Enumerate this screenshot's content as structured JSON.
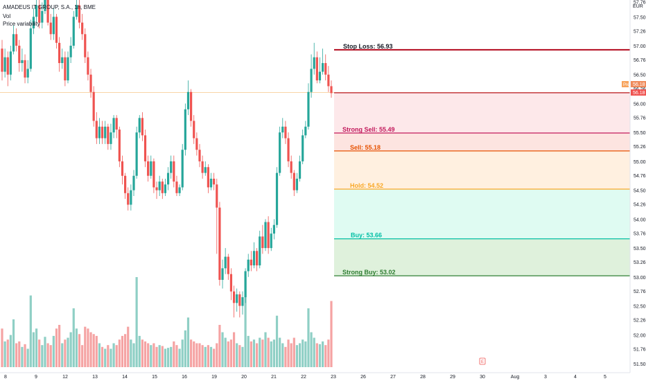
{
  "legend": {
    "symbol": "AMADEUS IT GROUP, S.A., 1h, BME",
    "vol": "Vol",
    "indicator": "Price variability"
  },
  "currency": "EUR",
  "current_price_label": "56.18",
  "prev_label": "Pre",
  "badge_icon": "E",
  "colors": {
    "bull": "#26a69a",
    "bear": "#ef5350",
    "vol_bull": "#8fcfc5",
    "vol_bear": "#f5a3a3",
    "stop_loss": "#b2081c",
    "strong_sell": "#c2185b",
    "sell": "#e65100",
    "hold": "#f9a825",
    "buy": "#00bfa5",
    "strong_buy": "#2e7d32"
  },
  "chart_data": {
    "type": "candlestick",
    "ylim": [
      51.5,
      57.9
    ],
    "y_ticks": [
      "57.76",
      "57.50",
      "57.26",
      "57.00",
      "56.76",
      "56.50",
      "56.26",
      "56.00",
      "55.76",
      "55.50",
      "55.26",
      "55.00",
      "54.76",
      "54.50",
      "54.26",
      "54.00",
      "53.76",
      "53.50",
      "53.26",
      "53.00",
      "52.76",
      "52.50",
      "52.26",
      "52.00",
      "51.76",
      "51.50"
    ],
    "x_ticks": [
      "8",
      "9",
      "12",
      "13",
      "14",
      "15",
      "16",
      "19",
      "20",
      "21",
      "22",
      "23",
      "26",
      "27",
      "28",
      "29",
      "30",
      "Aug",
      "3",
      "4",
      "5"
    ],
    "levels": [
      {
        "label": "Stop Loss: 56.93",
        "value": 56.93,
        "color_key": "stop_loss"
      },
      {
        "label": "Strong Sell: 55.49",
        "value": 55.49,
        "color_key": "strong_sell"
      },
      {
        "label": "Sell: 55.18",
        "value": 55.18,
        "color_key": "sell"
      },
      {
        "label": "Hold: 54.52",
        "value": 54.52,
        "color_key": "hold"
      },
      {
        "label": "Buy: 53.66",
        "value": 53.66,
        "color_key": "buy"
      },
      {
        "label": "Strong Buy: 53.02",
        "value": 53.02,
        "color_key": "strong_buy"
      }
    ],
    "current_price": 56.18,
    "candles": [
      [
        56.95,
        56.55,
        57.1,
        56.4,
        420
      ],
      [
        56.55,
        56.8,
        56.95,
        56.45,
        280
      ],
      [
        56.8,
        56.5,
        56.9,
        56.3,
        300
      ],
      [
        56.5,
        56.9,
        57.0,
        56.4,
        350
      ],
      [
        56.9,
        57.2,
        57.35,
        56.85,
        520
      ],
      [
        57.2,
        57.0,
        57.3,
        56.9,
        260
      ],
      [
        57.0,
        56.7,
        57.1,
        56.55,
        280
      ],
      [
        56.7,
        56.75,
        56.95,
        56.55,
        220
      ],
      [
        56.75,
        56.45,
        56.85,
        56.35,
        250
      ],
      [
        56.45,
        56.6,
        56.75,
        56.35,
        200
      ],
      [
        56.6,
        57.3,
        57.45,
        56.55,
        780
      ],
      [
        57.3,
        57.5,
        57.65,
        57.2,
        380
      ],
      [
        57.5,
        57.7,
        57.9,
        57.4,
        420
      ],
      [
        57.7,
        57.4,
        57.8,
        57.3,
        300
      ],
      [
        57.4,
        57.6,
        57.75,
        57.3,
        240
      ],
      [
        57.6,
        57.8,
        57.92,
        57.55,
        330
      ],
      [
        57.8,
        57.4,
        57.9,
        57.35,
        260
      ],
      [
        57.4,
        57.2,
        57.55,
        57.1,
        240
      ],
      [
        57.2,
        57.5,
        57.65,
        57.1,
        340
      ],
      [
        57.5,
        57.05,
        57.55,
        56.95,
        420
      ],
      [
        57.05,
        56.7,
        57.15,
        56.55,
        460
      ],
      [
        56.7,
        56.8,
        56.95,
        56.6,
        260
      ],
      [
        56.8,
        56.4,
        56.9,
        56.3,
        300
      ],
      [
        56.4,
        56.8,
        56.9,
        56.35,
        320
      ],
      [
        56.8,
        57.0,
        57.15,
        56.7,
        380
      ],
      [
        57.0,
        57.5,
        57.6,
        56.95,
        640
      ],
      [
        57.5,
        57.7,
        57.85,
        57.45,
        420
      ],
      [
        57.7,
        57.4,
        57.8,
        57.3,
        360
      ],
      [
        57.4,
        57.2,
        57.55,
        57.1,
        240
      ],
      [
        57.2,
        56.8,
        57.3,
        56.7,
        440
      ],
      [
        56.8,
        56.5,
        56.9,
        56.4,
        420
      ],
      [
        56.5,
        56.2,
        56.6,
        56.1,
        380
      ],
      [
        56.2,
        55.7,
        56.3,
        55.6,
        360
      ],
      [
        55.7,
        55.4,
        55.85,
        55.3,
        340
      ],
      [
        55.4,
        55.6,
        55.75,
        55.3,
        260
      ],
      [
        55.6,
        55.4,
        55.7,
        55.3,
        220
      ],
      [
        55.4,
        55.6,
        55.7,
        55.3,
        200
      ],
      [
        55.6,
        55.3,
        55.65,
        55.2,
        240
      ],
      [
        55.3,
        55.5,
        55.65,
        55.2,
        200
      ],
      [
        55.5,
        55.75,
        55.8,
        55.4,
        260
      ],
      [
        55.75,
        55.55,
        55.8,
        55.4,
        240
      ],
      [
        55.55,
        55.0,
        55.6,
        54.9,
        300
      ],
      [
        55.0,
        54.75,
        55.1,
        54.6,
        340
      ],
      [
        54.75,
        54.45,
        54.8,
        54.35,
        360
      ],
      [
        54.45,
        54.25,
        54.55,
        54.15,
        440
      ],
      [
        54.25,
        54.5,
        54.6,
        54.15,
        300
      ],
      [
        54.5,
        54.75,
        54.85,
        54.4,
        260
      ],
      [
        54.75,
        55.5,
        55.6,
        54.7,
        980
      ],
      [
        55.5,
        55.75,
        55.8,
        55.4,
        340
      ],
      [
        55.75,
        55.45,
        55.85,
        55.35,
        300
      ],
      [
        55.45,
        55.0,
        55.55,
        54.9,
        280
      ],
      [
        55.0,
        54.75,
        55.1,
        54.65,
        260
      ],
      [
        54.75,
        55.0,
        55.1,
        54.7,
        240
      ],
      [
        55.0,
        54.55,
        55.05,
        54.45,
        260
      ],
      [
        54.55,
        54.5,
        54.65,
        54.35,
        220
      ],
      [
        54.5,
        54.65,
        54.75,
        54.4,
        240
      ],
      [
        54.65,
        54.45,
        54.7,
        54.35,
        230
      ],
      [
        54.45,
        54.6,
        54.7,
        54.4,
        200
      ],
      [
        54.6,
        54.8,
        54.9,
        54.5,
        210
      ],
      [
        54.8,
        55.0,
        55.1,
        54.7,
        220
      ],
      [
        55.0,
        54.65,
        55.1,
        54.55,
        280
      ],
      [
        54.65,
        54.45,
        54.75,
        54.4,
        240
      ],
      [
        54.45,
        54.55,
        54.6,
        54.4,
        200
      ],
      [
        54.55,
        55.2,
        55.3,
        54.5,
        300
      ],
      [
        55.2,
        55.9,
        56.0,
        55.1,
        400
      ],
      [
        55.9,
        56.2,
        56.4,
        55.8,
        540
      ],
      [
        56.2,
        55.7,
        56.25,
        55.6,
        300
      ],
      [
        55.7,
        55.4,
        55.8,
        55.3,
        280
      ],
      [
        55.4,
        55.2,
        55.5,
        55.1,
        260
      ],
      [
        55.2,
        55.0,
        55.3,
        54.9,
        260
      ],
      [
        55.0,
        54.8,
        55.1,
        54.7,
        240
      ],
      [
        54.8,
        54.9,
        55.0,
        54.75,
        220
      ],
      [
        54.9,
        54.55,
        54.95,
        54.45,
        240
      ],
      [
        54.55,
        54.7,
        54.8,
        54.5,
        220
      ],
      [
        54.7,
        54.6,
        54.8,
        54.5,
        200
      ],
      [
        54.6,
        54.2,
        54.7,
        53.4,
        260
      ],
      [
        54.2,
        52.95,
        54.3,
        52.85,
        460
      ],
      [
        52.95,
        53.15,
        53.3,
        52.8,
        380
      ],
      [
        53.15,
        53.35,
        53.5,
        53.05,
        320
      ],
      [
        53.35,
        53.05,
        53.4,
        52.95,
        280
      ],
      [
        53.05,
        52.75,
        53.15,
        52.6,
        300
      ],
      [
        52.75,
        52.55,
        52.85,
        52.3,
        380
      ],
      [
        52.55,
        52.7,
        52.8,
        52.4,
        260
      ],
      [
        52.7,
        52.5,
        52.75,
        52.3,
        240
      ],
      [
        52.5,
        52.65,
        52.75,
        52.35,
        220
      ],
      [
        52.65,
        53.1,
        53.15,
        52.55,
        980
      ],
      [
        53.1,
        53.3,
        53.4,
        53.0,
        340
      ],
      [
        53.3,
        53.2,
        53.45,
        53.1,
        280
      ],
      [
        53.2,
        53.45,
        53.6,
        53.15,
        300
      ],
      [
        53.45,
        53.2,
        53.5,
        53.1,
        260
      ],
      [
        53.2,
        53.7,
        53.8,
        53.15,
        320
      ],
      [
        53.7,
        53.5,
        53.9,
        53.4,
        300
      ],
      [
        53.5,
        53.95,
        54.0,
        53.45,
        380
      ],
      [
        53.95,
        53.5,
        54.05,
        53.4,
        320
      ],
      [
        53.5,
        53.75,
        53.85,
        53.45,
        280
      ],
      [
        53.75,
        53.9,
        54.0,
        53.65,
        300
      ],
      [
        53.9,
        54.8,
        54.9,
        53.85,
        560
      ],
      [
        54.8,
        55.5,
        55.6,
        54.75,
        320
      ],
      [
        55.5,
        55.6,
        55.75,
        55.4,
        260
      ],
      [
        55.6,
        55.4,
        55.7,
        55.3,
        220
      ],
      [
        55.4,
        55.0,
        55.5,
        54.9,
        300
      ],
      [
        55.0,
        54.8,
        55.1,
        54.7,
        260
      ],
      [
        54.8,
        54.5,
        54.85,
        54.4,
        320
      ],
      [
        54.5,
        54.7,
        54.8,
        54.45,
        240
      ],
      [
        54.7,
        55.0,
        55.1,
        54.65,
        260
      ],
      [
        55.0,
        55.45,
        55.55,
        54.95,
        300
      ],
      [
        55.45,
        55.6,
        55.7,
        55.4,
        280
      ],
      [
        55.6,
        56.2,
        56.35,
        55.55,
        640
      ],
      [
        56.2,
        56.6,
        56.85,
        56.1,
        380
      ],
      [
        56.6,
        56.8,
        57.05,
        56.5,
        320
      ],
      [
        56.8,
        56.4,
        56.9,
        56.35,
        260
      ],
      [
        56.4,
        56.55,
        56.8,
        56.35,
        250
      ],
      [
        56.55,
        56.7,
        56.95,
        56.5,
        280
      ],
      [
        56.7,
        56.5,
        56.85,
        56.4,
        240
      ],
      [
        56.5,
        56.3,
        56.65,
        56.2,
        300
      ],
      [
        56.3,
        56.18,
        56.4,
        56.1,
        720
      ]
    ]
  }
}
